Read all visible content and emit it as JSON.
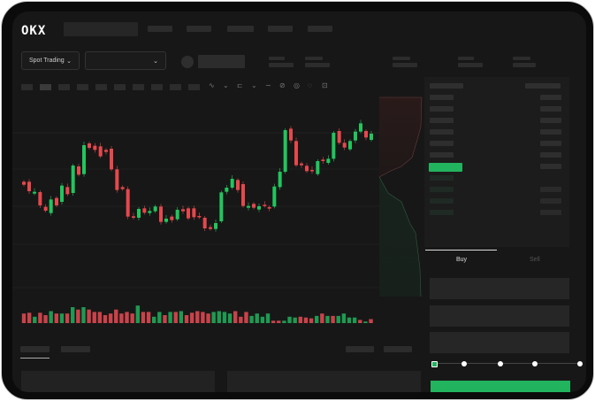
{
  "header": {
    "logo": "OKX"
  },
  "selectors": {
    "market_type": "Spot Trading",
    "pair": ""
  },
  "order_form": {
    "tabs": [
      "Buy",
      "Sell"
    ],
    "active_tab": "Buy"
  },
  "colors": {
    "up": "#22c55e",
    "down": "#e5484d",
    "background": "#171717",
    "accent": "#22b35e"
  },
  "icons": [
    "chevron-down-icon",
    "orderbook-both-icon",
    "orderbook-buy-icon",
    "orderbook-sell-icon"
  ]
}
